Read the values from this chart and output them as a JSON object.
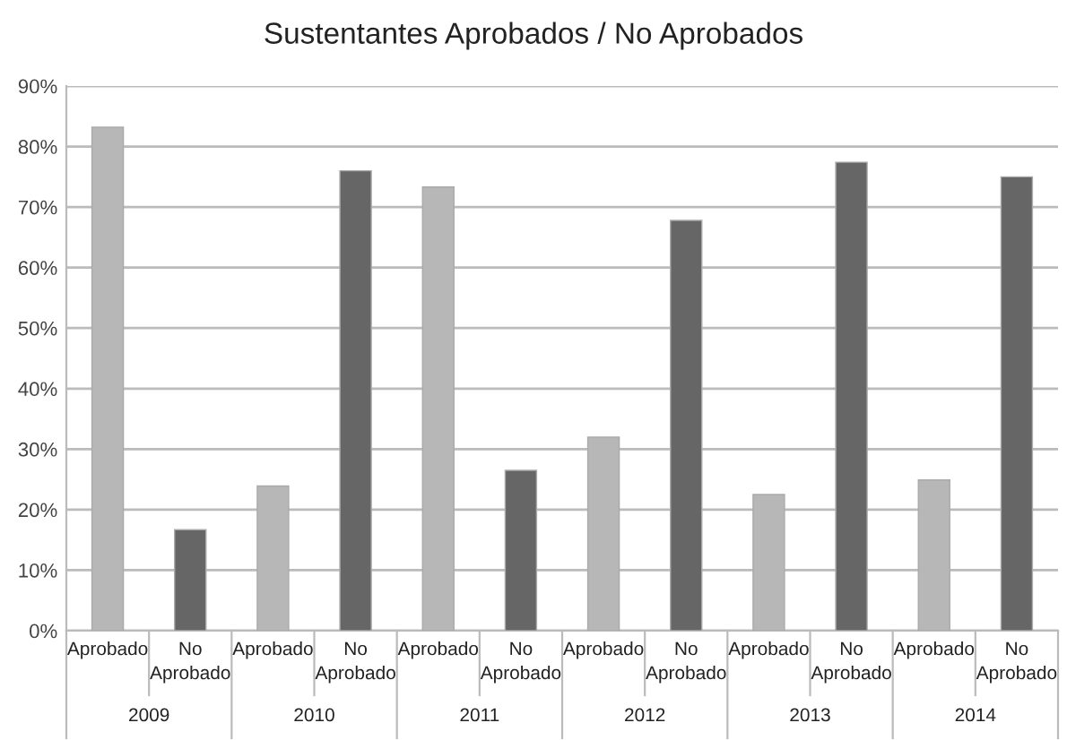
{
  "chart_data": {
    "type": "bar",
    "title": "Sustentantes Aprobados / No Aprobados",
    "categories": [
      "2009",
      "2010",
      "2011",
      "2012",
      "2013",
      "2014"
    ],
    "series": [
      {
        "name": "Aprobado",
        "color": "#b7b7b7",
        "values": [
          83.2,
          23.9,
          73.3,
          32.0,
          22.5,
          24.9
        ]
      },
      {
        "name": "No Aprobado",
        "color": "#666666",
        "values": [
          16.7,
          76.0,
          26.5,
          67.8,
          77.4,
          75.0
        ]
      }
    ],
    "ylim": [
      0,
      90
    ],
    "yticks": [
      {
        "value": 0,
        "label": "0%"
      },
      {
        "value": 10,
        "label": "10%"
      },
      {
        "value": 20,
        "label": "20%"
      },
      {
        "value": 30,
        "label": "30%"
      },
      {
        "value": 40,
        "label": "40%"
      },
      {
        "value": 50,
        "label": "50%"
      },
      {
        "value": 60,
        "label": "60%"
      },
      {
        "value": 70,
        "label": "70%"
      },
      {
        "value": 80,
        "label": "80%"
      },
      {
        "value": 90,
        "label": "90%"
      }
    ],
    "grid": "y",
    "legend": false
  }
}
